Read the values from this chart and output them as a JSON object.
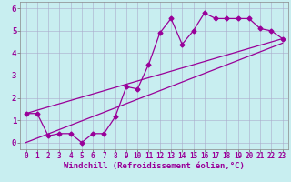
{
  "xlabel": "Windchill (Refroidissement éolien,°C)",
  "bg_color": "#c8eef0",
  "line_color": "#990099",
  "grid_color": "#aaaacc",
  "xlim": [
    -0.5,
    23.5
  ],
  "ylim": [
    -0.3,
    6.3
  ],
  "xticks": [
    0,
    1,
    2,
    3,
    4,
    5,
    6,
    7,
    8,
    9,
    10,
    11,
    12,
    13,
    14,
    15,
    16,
    17,
    18,
    19,
    20,
    21,
    22,
    23
  ],
  "yticks": [
    0,
    1,
    2,
    3,
    4,
    5,
    6
  ],
  "line1_x": [
    0,
    1,
    2,
    3,
    4,
    5,
    6,
    7,
    8,
    9,
    10,
    11,
    12,
    13,
    14,
    15,
    16,
    17,
    18,
    19,
    20,
    21,
    22,
    23
  ],
  "line1_y": [
    1.3,
    1.3,
    0.3,
    0.4,
    0.4,
    0.0,
    0.4,
    0.4,
    1.15,
    2.5,
    2.4,
    3.5,
    4.9,
    5.55,
    4.4,
    5.0,
    5.8,
    5.55,
    5.55,
    5.55,
    5.55,
    5.1,
    5.0,
    4.65
  ],
  "line2_x": [
    0,
    23
  ],
  "line2_y": [
    1.3,
    4.65
  ],
  "line3_x": [
    0,
    23
  ],
  "line3_y": [
    0.0,
    4.45
  ],
  "marker_size": 2.5,
  "line_width": 0.9,
  "font_size_xlabel": 6.5,
  "font_size_ytick": 6.5,
  "font_size_xtick": 5.5
}
